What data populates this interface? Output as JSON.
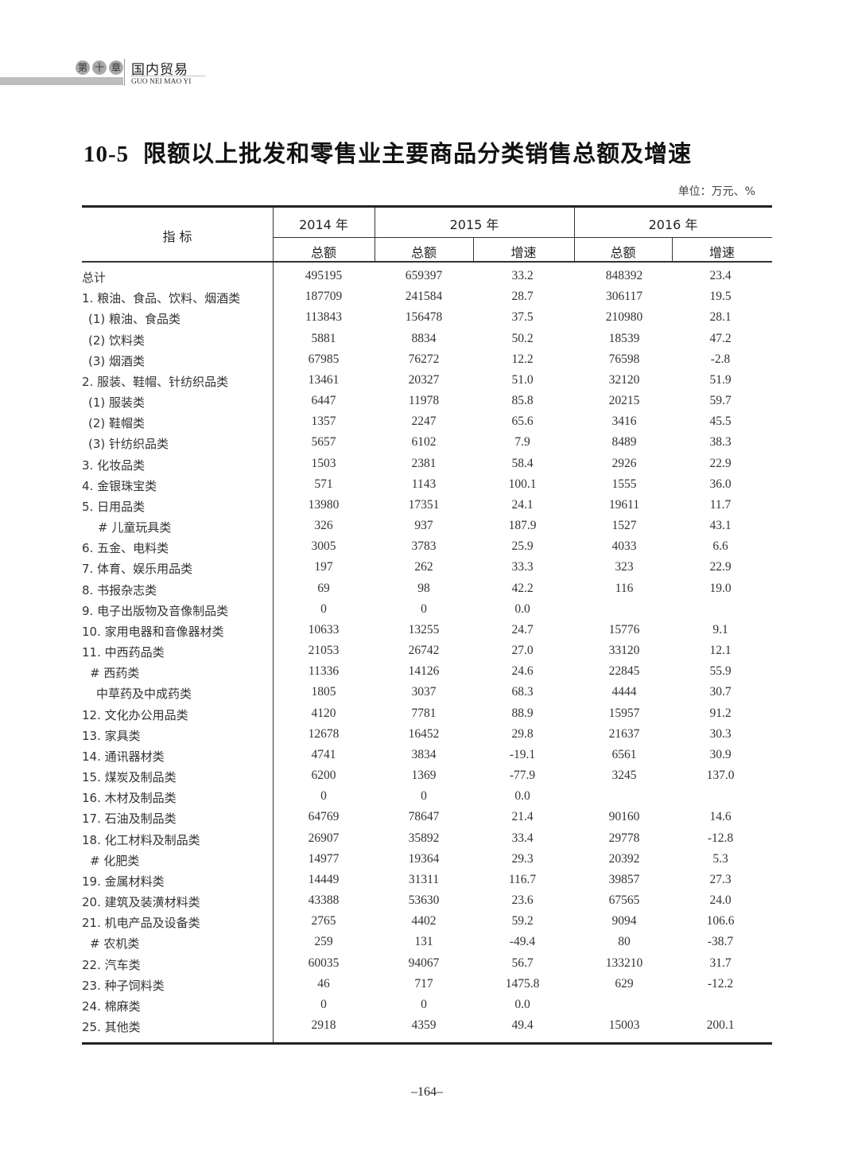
{
  "running_header": {
    "chapter_chars": [
      "第",
      "十",
      "章"
    ],
    "section": "国内贸易",
    "section_pinyin": "GUO NEI MAO YI"
  },
  "title": {
    "number": "10-5",
    "text": "限额以上批发和零售业主要商品分类销售总额及增速"
  },
  "unit": "单位：万元、%",
  "table": {
    "header": {
      "indicator": "指 标",
      "years": [
        "2014 年",
        "2015 年",
        "2016 年"
      ],
      "sub": [
        "总额",
        "总额",
        "增速",
        "总额",
        "增速"
      ]
    },
    "rows": [
      {
        "label": "总计",
        "values": [
          "495195",
          "659397",
          "33.2",
          "848392",
          "23.4"
        ]
      },
      {
        "label": "1. 粮油、食品、饮料、烟酒类",
        "values": [
          "187709",
          "241584",
          "28.7",
          "306117",
          "19.5"
        ]
      },
      {
        "label": "(1) 粮油、食品类",
        "values": [
          "113843",
          "156478",
          "37.5",
          "210980",
          "28.1"
        ]
      },
      {
        "label": "(2) 饮料类",
        "values": [
          "5881",
          "8834",
          "50.2",
          "18539",
          "47.2"
        ]
      },
      {
        "label": "(3) 烟酒类",
        "values": [
          "67985",
          "76272",
          "12.2",
          "76598",
          "-2.8"
        ]
      },
      {
        "label": "2. 服装、鞋帽、针纺织品类",
        "values": [
          "13461",
          "20327",
          "51.0",
          "32120",
          "51.9"
        ]
      },
      {
        "label": "(1) 服装类",
        "values": [
          "6447",
          "11978",
          "85.8",
          "20215",
          "59.7"
        ]
      },
      {
        "label": "(2) 鞋帽类",
        "values": [
          "1357",
          "2247",
          "65.6",
          "3416",
          "45.5"
        ]
      },
      {
        "label": "(3) 针纺织品类",
        "values": [
          "5657",
          "6102",
          "7.9",
          "8489",
          "38.3"
        ]
      },
      {
        "label": "3. 化妆品类",
        "values": [
          "1503",
          "2381",
          "58.4",
          "2926",
          "22.9"
        ]
      },
      {
        "label": "4. 金银珠宝类",
        "values": [
          "571",
          "1143",
          "100.1",
          "1555",
          "36.0"
        ]
      },
      {
        "label": "5. 日用品类",
        "values": [
          "13980",
          "17351",
          "24.1",
          "19611",
          "11.7"
        ]
      },
      {
        "label": "# 儿童玩具类",
        "values": [
          "326",
          "937",
          "187.9",
          "1527",
          "43.1"
        ]
      },
      {
        "label": "6. 五金、电料类",
        "values": [
          "3005",
          "3783",
          "25.9",
          "4033",
          "6.6"
        ]
      },
      {
        "label": "7. 体育、娱乐用品类",
        "values": [
          "197",
          "262",
          "33.3",
          "323",
          "22.9"
        ]
      },
      {
        "label": "8. 书报杂志类",
        "values": [
          "69",
          "98",
          "42.2",
          "116",
          "19.0"
        ]
      },
      {
        "label": "9. 电子出版物及音像制品类",
        "values": [
          "0",
          "0",
          "0.0",
          "",
          ""
        ]
      },
      {
        "label": "10. 家用电器和音像器材类",
        "values": [
          "10633",
          "13255",
          "24.7",
          "15776",
          "9.1"
        ]
      },
      {
        "label": "11. 中西药品类",
        "values": [
          "21053",
          "26742",
          "27.0",
          "33120",
          "12.1"
        ]
      },
      {
        "label": "# 西药类",
        "values": [
          "11336",
          "14126",
          "24.6",
          "22845",
          "55.9"
        ]
      },
      {
        "label": "中草药及中成药类",
        "values": [
          "1805",
          "3037",
          "68.3",
          "4444",
          "30.7"
        ]
      },
      {
        "label": "12. 文化办公用品类",
        "values": [
          "4120",
          "7781",
          "88.9",
          "15957",
          "91.2"
        ]
      },
      {
        "label": "13. 家具类",
        "values": [
          "12678",
          "16452",
          "29.8",
          "21637",
          "30.3"
        ]
      },
      {
        "label": "14. 通讯器材类",
        "values": [
          "4741",
          "3834",
          "-19.1",
          "6561",
          "30.9"
        ]
      },
      {
        "label": "15. 煤炭及制品类",
        "values": [
          "6200",
          "1369",
          "-77.9",
          "3245",
          "137.0"
        ]
      },
      {
        "label": "16. 木材及制品类",
        "values": [
          "0",
          "0",
          "0.0",
          "",
          ""
        ]
      },
      {
        "label": "17. 石油及制品类",
        "values": [
          "64769",
          "78647",
          "21.4",
          "90160",
          "14.6"
        ]
      },
      {
        "label": "18. 化工材料及制品类",
        "values": [
          "26907",
          "35892",
          "33.4",
          "29778",
          "-12.8"
        ]
      },
      {
        "label": "# 化肥类",
        "values": [
          "14977",
          "19364",
          "29.3",
          "20392",
          "5.3"
        ]
      },
      {
        "label": "19. 金属材料类",
        "values": [
          "14449",
          "31311",
          "116.7",
          "39857",
          "27.3"
        ]
      },
      {
        "label": "20. 建筑及装潢材料类",
        "values": [
          "43388",
          "53630",
          "23.6",
          "67565",
          "24.0"
        ]
      },
      {
        "label": "21. 机电产品及设备类",
        "values": [
          "2765",
          "4402",
          "59.2",
          "9094",
          "106.6"
        ]
      },
      {
        "label": "# 农机类",
        "values": [
          "259",
          "131",
          "-49.4",
          "80",
          "-38.7"
        ]
      },
      {
        "label": "22. 汽车类",
        "values": [
          "60035",
          "94067",
          "56.7",
          "133210",
          "31.7"
        ]
      },
      {
        "label": "23. 种子饲料类",
        "values": [
          "46",
          "717",
          "1475.8",
          "629",
          "-12.2"
        ]
      },
      {
        "label": "24. 棉麻类",
        "values": [
          "0",
          "0",
          "0.0",
          "",
          ""
        ]
      },
      {
        "label": "25. 其他类",
        "values": [
          "2918",
          "4359",
          "49.4",
          "15003",
          "200.1"
        ]
      }
    ]
  },
  "page_number": "–164–"
}
